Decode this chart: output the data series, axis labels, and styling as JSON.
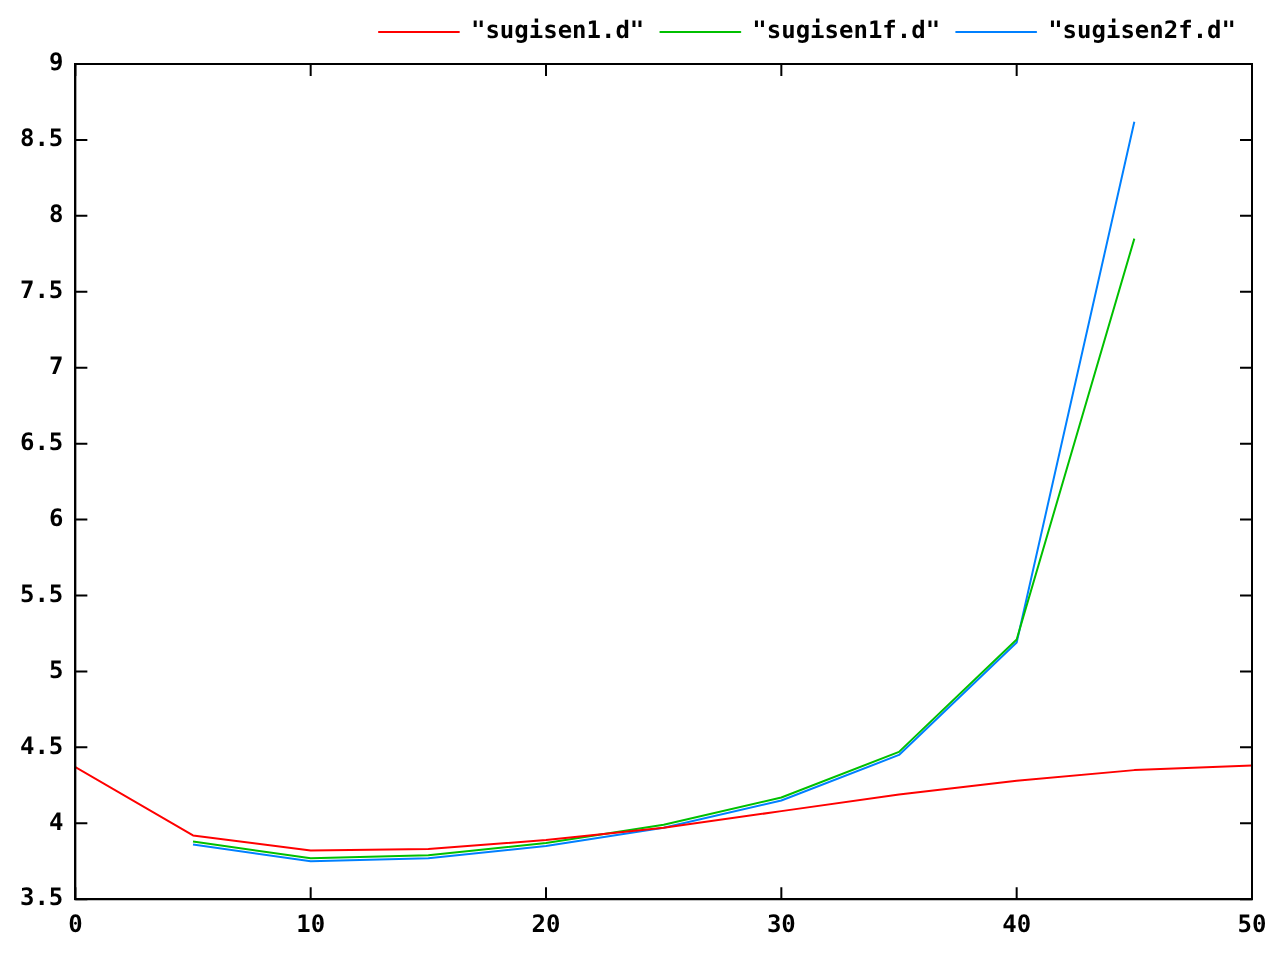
{
  "chart_data": {
    "type": "line",
    "x": [
      0,
      5,
      10,
      15,
      20,
      25,
      30,
      35,
      40,
      45,
      50
    ],
    "series": [
      {
        "name": "\"sugisen1.d\"",
        "color": "#ff0000",
        "values": [
          4.37,
          3.92,
          3.82,
          3.83,
          3.89,
          3.97,
          4.08,
          4.19,
          4.28,
          4.35,
          4.38
        ]
      },
      {
        "name": "\"sugisen1f.d\"",
        "color": "#00c000",
        "values": [
          null,
          3.88,
          3.77,
          3.79,
          3.87,
          3.99,
          4.17,
          4.47,
          5.21,
          7.85,
          null
        ]
      },
      {
        "name": "\"sugisen2f.d\"",
        "color": "#0080ff",
        "values": [
          null,
          3.86,
          3.75,
          3.77,
          3.85,
          3.97,
          4.15,
          4.45,
          5.19,
          8.62,
          null
        ]
      }
    ],
    "xlim": [
      0,
      50
    ],
    "xticks": [
      0,
      10,
      20,
      30,
      40,
      50
    ],
    "ylim": [
      3.5,
      9
    ],
    "yticks": [
      3.5,
      4,
      4.5,
      5,
      5.5,
      6,
      6.5,
      7,
      7.5,
      8,
      8.5,
      9
    ],
    "grid": false,
    "legend": "top right",
    "marker": "none",
    "line_style": "solid"
  }
}
